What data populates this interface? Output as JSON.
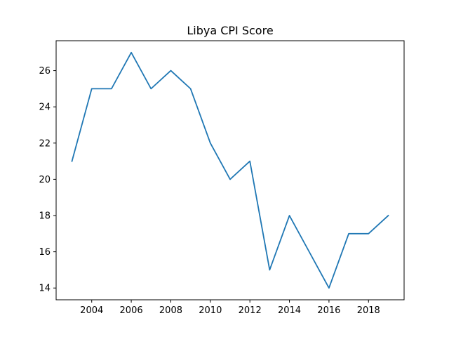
{
  "chart_data": {
    "type": "line",
    "title": "Libya CPI Score",
    "xlabel": "",
    "ylabel": "",
    "x": [
      2003,
      2004,
      2005,
      2006,
      2007,
      2008,
      2009,
      2010,
      2011,
      2012,
      2013,
      2014,
      2015,
      2016,
      2017,
      2018,
      2019
    ],
    "series": [
      {
        "values": [
          21,
          25,
          25,
          27,
          25,
          26,
          25,
          22,
          20,
          21,
          15,
          18,
          16,
          14,
          17,
          17,
          18
        ],
        "color": "#1f77b4"
      }
    ],
    "xlim": [
      2002.2,
      2019.8
    ],
    "ylim": [
      13.35,
      27.65
    ],
    "xticks": [
      "2004",
      "2006",
      "2008",
      "2010",
      "2012",
      "2014",
      "2016",
      "2018"
    ],
    "yticks": [
      "14",
      "16",
      "18",
      "20",
      "22",
      "24",
      "26"
    ],
    "grid": false
  }
}
